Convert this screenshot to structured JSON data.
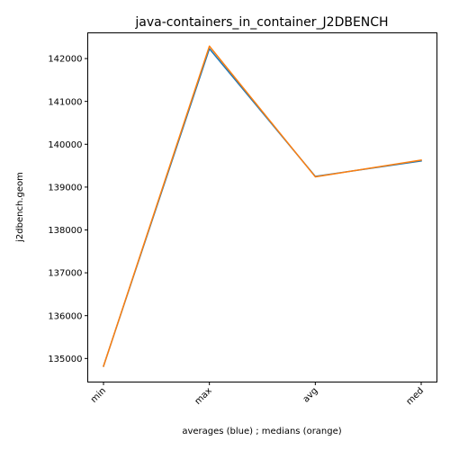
{
  "chart_data": {
    "type": "line",
    "title": "java-containers_in_container_J2DBENCH",
    "xlabel": "averages (blue) ; medians (orange)",
    "ylabel": "j2dbench.geom",
    "categories": [
      "min",
      "max",
      "avg",
      "med"
    ],
    "ylim": [
      134450,
      142600
    ],
    "yticks": [
      135000,
      136000,
      137000,
      138000,
      139000,
      140000,
      141000,
      142000
    ],
    "yticklabels": [
      "135000",
      "136000",
      "137000",
      "138000",
      "139000",
      "140000",
      "141000",
      "142000"
    ],
    "grid": false,
    "series": [
      {
        "color": "#1f77b4",
        "values": [
          134820,
          142230,
          139250,
          139610
        ]
      },
      {
        "color": "#ff7f0e",
        "values": [
          134820,
          142290,
          139240,
          139630
        ]
      }
    ]
  }
}
